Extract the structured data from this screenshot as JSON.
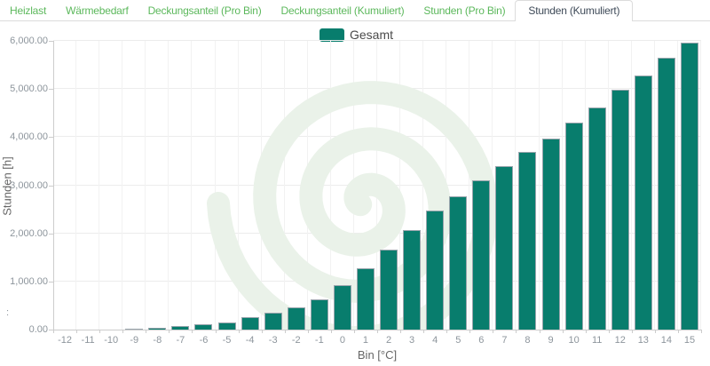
{
  "tabs": {
    "items": [
      {
        "label": "Heizlast",
        "active": false
      },
      {
        "label": "Wärmebedarf",
        "active": false
      },
      {
        "label": "Deckungsanteil (Pro Bin)",
        "active": false
      },
      {
        "label": "Deckungsanteil (Kumuliert)",
        "active": false
      },
      {
        "label": "Stunden (Pro Bin)",
        "active": false
      },
      {
        "label": "Stunden (Kumuliert)",
        "active": true
      }
    ]
  },
  "legend": {
    "label": "Gesamt"
  },
  "misc": {
    "stray_label": ":"
  },
  "colors": {
    "bar_fill": "#087d6d",
    "bar_border": "#9aa5ad",
    "tab_inactive_text": "#5cb85c",
    "tab_active_text": "#3e4a58",
    "tab_border": "#dcdcdc",
    "gridline": "#ececec",
    "axis_line": "#cccccc",
    "tick_label": "#8d959c",
    "axis_title": "#666666",
    "legend_text": "#4a4a4a",
    "watermark": "#eaf2e9"
  },
  "chart_data": {
    "type": "bar",
    "title": "",
    "series_name": "Gesamt",
    "categories": [
      "-12",
      "-11",
      "-10",
      "-9",
      "-8",
      "-7",
      "-6",
      "-5",
      "-4",
      "-3",
      "-2",
      "-1",
      "0",
      "1",
      "2",
      "3",
      "4",
      "5",
      "6",
      "7",
      "8",
      "9",
      "10",
      "11",
      "12",
      "13",
      "14",
      "15"
    ],
    "values": [
      0,
      0,
      5,
      22,
      45,
      65,
      115,
      155,
      265,
      345,
      455,
      625,
      930,
      1280,
      1670,
      2060,
      2470,
      2770,
      3110,
      3390,
      3700,
      3975,
      4300,
      4610,
      4990,
      5280,
      5640,
      5960
    ],
    "xlabel": "Bin [°C]",
    "ylabel": "Stunden [h]",
    "ylim": [
      0,
      6000
    ],
    "y_tick_step": 1000,
    "y_tick_labels": [
      "0.00",
      "1,000.00",
      "2,000.00",
      "3,000.00",
      "4,000.00",
      "5,000.00",
      "6,000.00"
    ],
    "grid": true,
    "legend_position": "top-center",
    "legend_entries": [
      "Gesamt"
    ]
  }
}
